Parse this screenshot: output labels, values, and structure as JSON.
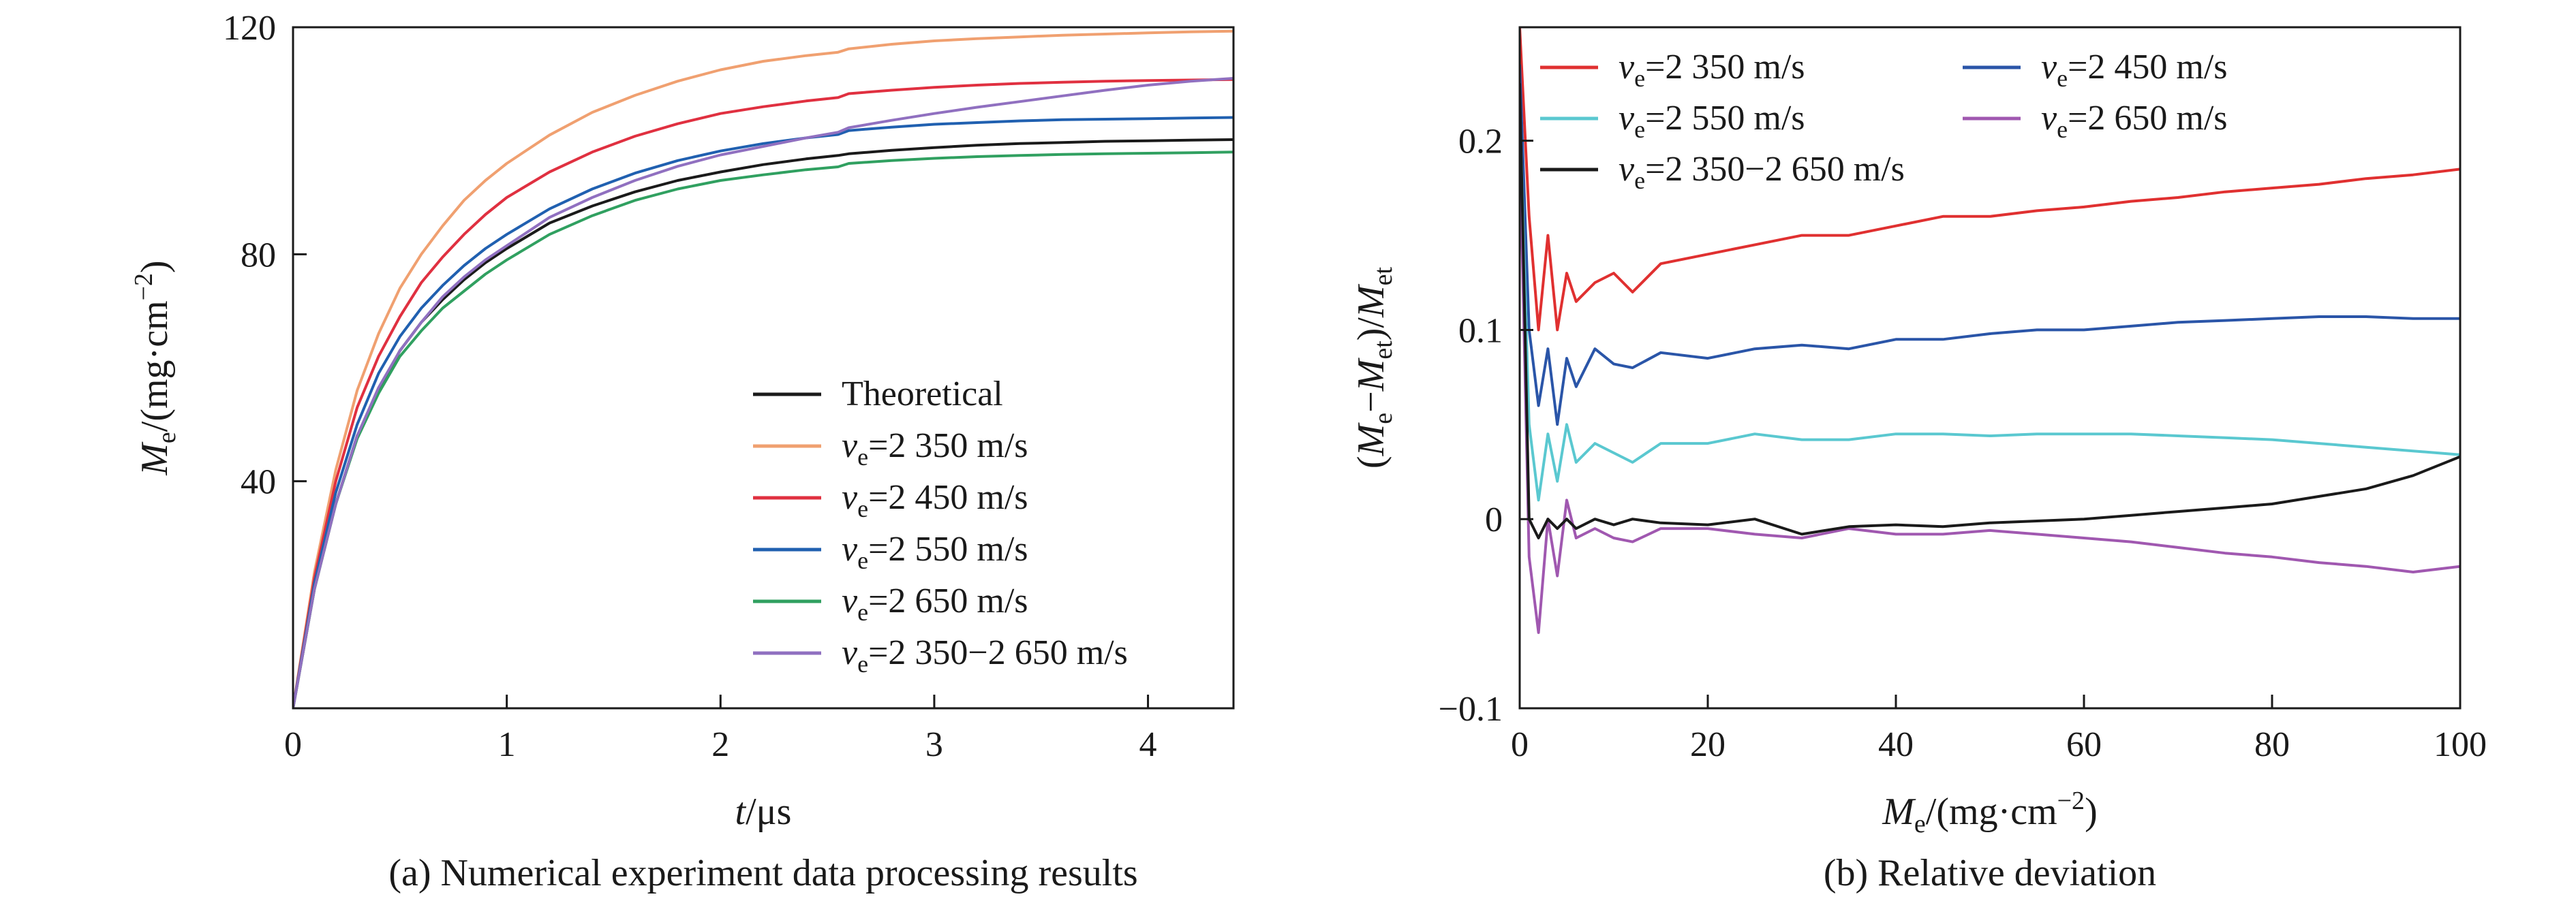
{
  "chart_data": [
    {
      "type": "line",
      "title": "(a) Numerical experiment data processing results",
      "xlabel": {
        "base": "t",
        "unit": "/μs"
      },
      "ylabel": {
        "base": "M",
        "sub": "e",
        "unit": "/(mg·cm",
        "sup": "−2",
        "close": ")"
      },
      "xlim": [
        0,
        4.4
      ],
      "ylim": [
        0,
        120
      ],
      "xticks": [
        "0",
        "1",
        "2",
        "3",
        "4"
      ],
      "xtick_values": [
        0,
        1,
        2,
        3,
        4
      ],
      "yticks": [
        "40",
        "80",
        "120"
      ],
      "ytick_values": [
        40,
        80,
        120
      ],
      "legend_position": "bottom-right",
      "x": [
        0,
        0.1,
        0.2,
        0.3,
        0.4,
        0.5,
        0.6,
        0.7,
        0.8,
        0.9,
        1.0,
        1.2,
        1.4,
        1.6,
        1.8,
        2.0,
        2.2,
        2.4,
        2.55,
        2.6,
        2.8,
        3.0,
        3.2,
        3.4,
        3.6,
        3.8,
        4.0,
        4.2,
        4.4
      ],
      "series": [
        {
          "name": "Theoretical",
          "color": "#1a1a1a",
          "values": [
            0,
            21,
            36,
            48,
            56,
            63,
            68,
            72,
            75.5,
            78.5,
            81,
            85.5,
            88.5,
            91,
            93,
            94.5,
            95.8,
            96.8,
            97.4,
            97.7,
            98.3,
            98.8,
            99.2,
            99.5,
            99.7,
            99.9,
            100.0,
            100.1,
            100.2
          ]
        },
        {
          "name": "v_e=2 350 m/s",
          "label_main": "=2 350 m/s",
          "color": "#f0a070",
          "values": [
            0,
            24,
            42,
            56,
            66,
            74,
            80,
            85,
            89.5,
            93,
            96,
            101,
            105,
            108,
            110.5,
            112.5,
            114,
            115,
            115.6,
            116.2,
            117,
            117.6,
            118,
            118.3,
            118.6,
            118.8,
            119.0,
            119.2,
            119.3
          ]
        },
        {
          "name": "v_e=2 450 m/s",
          "label_main": "=2 450 m/s",
          "color": "#e03040",
          "values": [
            0,
            23,
            40,
            53,
            62,
            69,
            75,
            79.5,
            83.5,
            87,
            90,
            94.5,
            98,
            100.8,
            103,
            104.8,
            106,
            107,
            107.6,
            108.3,
            108.9,
            109.4,
            109.8,
            110.1,
            110.3,
            110.5,
            110.6,
            110.7,
            110.8
          ]
        },
        {
          "name": "v_e=2 550 m/s",
          "label_main": "=2 550 m/s",
          "color": "#2060b0",
          "values": [
            0,
            22,
            38,
            50,
            59,
            65.5,
            70.5,
            74.5,
            78,
            81,
            83.5,
            88,
            91.5,
            94.3,
            96.5,
            98.2,
            99.5,
            100.5,
            101.1,
            101.8,
            102.4,
            102.9,
            103.2,
            103.5,
            103.7,
            103.8,
            103.9,
            104.0,
            104.1
          ]
        },
        {
          "name": "v_e=2 650 m/s",
          "label_main": "=2 650 m/s",
          "color": "#30a060",
          "values": [
            0,
            21,
            36,
            47.5,
            55.5,
            62,
            66.5,
            70.5,
            73.5,
            76.5,
            79,
            83.5,
            86.8,
            89.5,
            91.5,
            93,
            94,
            94.9,
            95.4,
            96,
            96.5,
            96.9,
            97.2,
            97.4,
            97.6,
            97.7,
            97.8,
            97.9,
            98.0
          ]
        },
        {
          "name": "v_e=2 350−2 650 m/s",
          "label_main": "=2 350−2 650 m/s",
          "color": "#9070c0",
          "values": [
            0,
            21,
            36,
            48,
            56.5,
            63,
            68,
            72.5,
            76,
            79,
            81.5,
            86.5,
            90,
            93,
            95.5,
            97.5,
            99,
            100.5,
            101.5,
            102.3,
            103.6,
            104.8,
            105.9,
            106.9,
            107.9,
            108.9,
            109.8,
            110.5,
            111.0
          ]
        }
      ]
    },
    {
      "type": "line",
      "title": "(b) Relative deviation",
      "xlabel": {
        "base": "M",
        "sub": "e",
        "unit": "/(mg·cm",
        "sup": "−2",
        "close": ")"
      },
      "ylabel": {
        "open": "(",
        "a": "M",
        "asub": "e",
        "minus": "−",
        "b": "M",
        "bsub": "et",
        "close": ")/",
        "c": "M",
        "csub": "et"
      },
      "xlim": [
        0,
        100
      ],
      "ylim": [
        -0.1,
        0.26
      ],
      "xticks": [
        "0",
        "20",
        "40",
        "60",
        "80",
        "100"
      ],
      "xtick_values": [
        0,
        20,
        40,
        60,
        80,
        100
      ],
      "yticks": [
        "−0.1",
        "0",
        "0.1",
        "0.2"
      ],
      "ytick_values": [
        -0.1,
        0,
        0.1,
        0.2
      ],
      "legend_position": "top",
      "x": [
        0,
        1,
        2,
        3,
        4,
        5,
        6,
        8,
        10,
        12,
        15,
        20,
        25,
        30,
        35,
        40,
        45,
        50,
        55,
        60,
        65,
        70,
        75,
        80,
        85,
        90,
        95,
        100
      ],
      "series": [
        {
          "name": "v_e=2 350 m/s",
          "label_main": "=2 350 m/s",
          "color": "#e03030",
          "values": [
            0.26,
            0.16,
            0.1,
            0.15,
            0.1,
            0.13,
            0.115,
            0.125,
            0.13,
            0.12,
            0.135,
            0.14,
            0.145,
            0.15,
            0.15,
            0.155,
            0.16,
            0.16,
            0.163,
            0.165,
            0.168,
            0.17,
            0.173,
            0.175,
            0.177,
            0.18,
            0.182,
            0.185
          ]
        },
        {
          "name": "v_e=2 450 m/s",
          "label_main": "=2 450 m/s",
          "color": "#2a55a8",
          "values": [
            0.24,
            0.1,
            0.06,
            0.09,
            0.05,
            0.085,
            0.07,
            0.09,
            0.082,
            0.08,
            0.088,
            0.085,
            0.09,
            0.092,
            0.09,
            0.095,
            0.095,
            0.098,
            0.1,
            0.1,
            0.102,
            0.104,
            0.105,
            0.106,
            0.107,
            0.107,
            0.106,
            0.106
          ]
        },
        {
          "name": "v_e=2 550 m/s",
          "label_main": "=2 550 m/s",
          "color": "#5ac8d0",
          "values": [
            0.22,
            0.05,
            0.01,
            0.045,
            0.02,
            0.05,
            0.03,
            0.04,
            0.035,
            0.03,
            0.04,
            0.04,
            0.045,
            0.042,
            0.042,
            0.045,
            0.045,
            0.044,
            0.045,
            0.045,
            0.045,
            0.044,
            0.043,
            0.042,
            0.04,
            0.038,
            0.036,
            0.034
          ]
        },
        {
          "name": "v_e=2 650 m/s",
          "label_main": "=2 650 m/s",
          "color": "#a058b0",
          "values": [
            0.2,
            -0.02,
            -0.06,
            0.0,
            -0.03,
            0.01,
            -0.01,
            -0.005,
            -0.01,
            -0.012,
            -0.005,
            -0.005,
            -0.008,
            -0.01,
            -0.005,
            -0.008,
            -0.008,
            -0.006,
            -0.008,
            -0.01,
            -0.012,
            -0.015,
            -0.018,
            -0.02,
            -0.023,
            -0.025,
            -0.028,
            -0.025
          ]
        },
        {
          "name": "v_e=2 350−2 650 m/s",
          "label_main": "=2 350−2 650 m/s",
          "color": "#1a1a1a",
          "values": [
            0.23,
            0.0,
            -0.01,
            0.0,
            -0.005,
            0.0,
            -0.005,
            0.0,
            -0.003,
            0.0,
            -0.002,
            -0.003,
            0.0,
            -0.008,
            -0.004,
            -0.003,
            -0.004,
            -0.002,
            -0.001,
            0.0,
            0.002,
            0.004,
            0.006,
            0.008,
            0.012,
            0.016,
            0.023,
            0.033
          ]
        }
      ]
    }
  ]
}
